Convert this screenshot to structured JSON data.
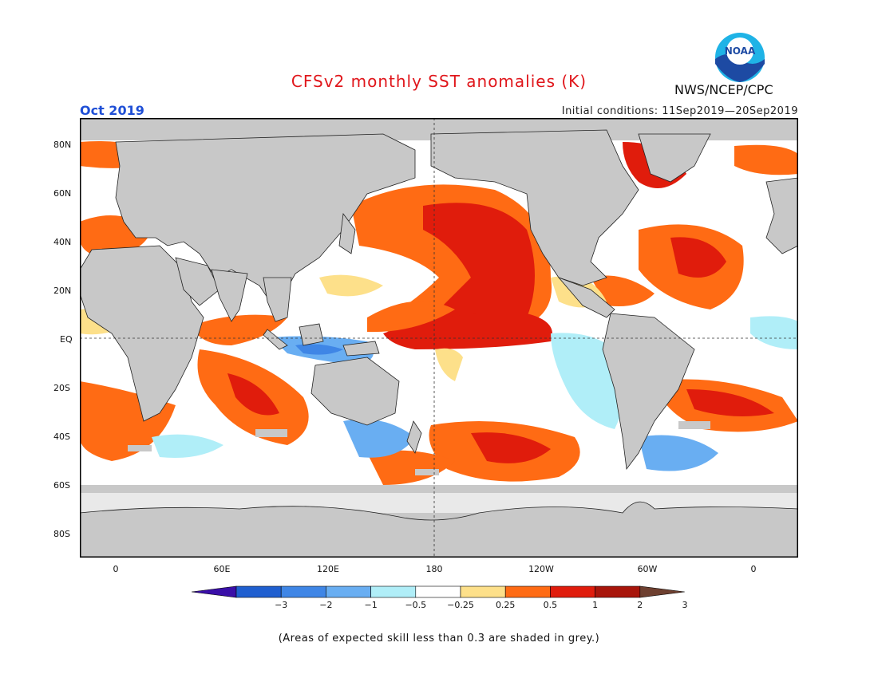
{
  "header": {
    "title": "CFSv2 monthly SST anomalies (K)",
    "month": "Oct 2019",
    "initial_conditions": "Initial conditions: 11Sep2019—20Sep2019",
    "agency": "NWS/NCEP/CPC",
    "logo_text": "NOAA"
  },
  "map": {
    "lat_labels": [
      "80N",
      "60N",
      "40N",
      "20N",
      "EQ",
      "20S",
      "40S",
      "60S",
      "80S"
    ],
    "lon_labels": [
      "0",
      "60E",
      "120E",
      "180",
      "120W",
      "60W",
      "0"
    ]
  },
  "colorbar": {
    "labels": [
      "−3",
      "−2",
      "−1",
      "−0.5",
      "−0.25",
      "0.25",
      "0.5",
      "1",
      "2",
      "3"
    ],
    "colors": [
      "#3a0fa8",
      "#1f5fd0",
      "#3f86e6",
      "#69aef2",
      "#b0eef8",
      "#ffffff",
      "#fde08a",
      "#ff6b14",
      "#e01c0c",
      "#a8150b",
      "#6e4030"
    ]
  },
  "colors": {
    "land": "#c8c8c8",
    "low_skill": "#c8c8c8",
    "title": "#e0161b",
    "month": "#1f4fd6"
  },
  "footnote": "(Areas of expected skill less than 0.3 are shaded in grey.)"
}
